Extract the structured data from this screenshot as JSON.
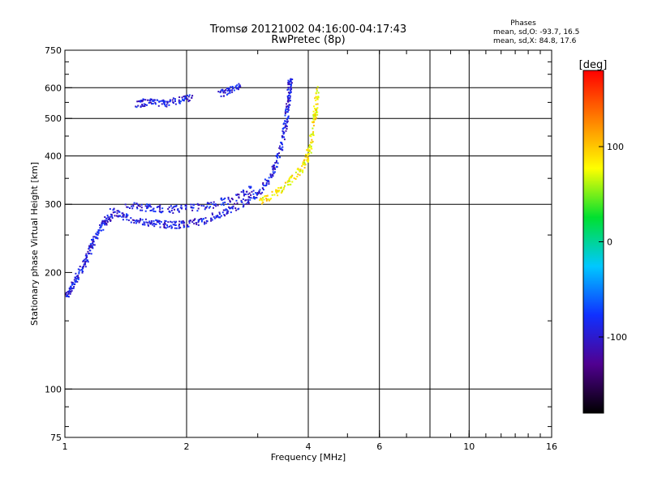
{
  "chart_data": {
    "type": "scatter",
    "title": "Tromsø 20121002 04:16:00-04:17:43",
    "subtitle": "RwPretec (8p)",
    "xlabel": "Frequency [MHz]",
    "ylabel": "Stationary phase Virtual Height [km]",
    "x_scale": "log",
    "y_scale": "log",
    "xlim": [
      1,
      16
    ],
    "ylim": [
      75,
      750
    ],
    "x_ticks": [
      1,
      2,
      4,
      6,
      10,
      16
    ],
    "y_ticks": [
      75,
      100,
      200,
      300,
      400,
      500,
      600,
      750
    ],
    "x_grid": [
      2,
      4,
      6,
      8,
      10
    ],
    "y_grid": [
      100,
      300,
      400,
      500,
      600
    ],
    "grid": true,
    "phases": {
      "heading": "Phases",
      "line_o": "mean, sd,O: -93.7, 16.5",
      "line_x": "mean, sd,X:  84.8, 17.6"
    },
    "colorbar": {
      "label": "[deg]",
      "range": [
        -180,
        180
      ],
      "ticks": [
        100,
        0,
        -100
      ],
      "colors": [
        "#000000",
        "#500090",
        "#1030ff",
        "#00c8ff",
        "#00e030",
        "#ffff00",
        "#ff8000",
        "#ff0000"
      ]
    },
    "series": [
      {
        "kind": "O-mode trace",
        "phase_mean": -93.7,
        "segments": [
          {
            "f": [
              1.0,
              1.04,
              1.08,
              1.12,
              1.16,
              1.2,
              1.25,
              1.3
            ],
            "h": [
              175,
              185,
              200,
              215,
              235,
              255,
              272,
              282
            ]
          },
          {
            "f": [
              1.3,
              1.4,
              1.55,
              1.7,
              1.85,
              2.0,
              2.2,
              2.45,
              2.7,
              2.95
            ],
            "h": [
              288,
              280,
              272,
              268,
              266,
              268,
              274,
              286,
              300,
              318
            ]
          },
          {
            "f": [
              1.4,
              1.6,
              1.8,
              2.0,
              2.3,
              2.6,
              2.9
            ],
            "h": [
              300,
              295,
              292,
              294,
              300,
              312,
              330
            ]
          },
          {
            "f": [
              2.95,
              3.15,
              3.3,
              3.42,
              3.5,
              3.55,
              3.58,
              3.6
            ],
            "h": [
              318,
              345,
              380,
              430,
              490,
              550,
              600,
              640
            ]
          },
          {
            "f": [
              1.5,
              1.6,
              1.75,
              1.9,
              2.05
            ],
            "h": [
              545,
              555,
              550,
              560,
              570
            ]
          },
          {
            "f": [
              2.4,
              2.55,
              2.7
            ],
            "h": [
              580,
              595,
              610
            ]
          }
        ]
      },
      {
        "kind": "X-mode trace",
        "phase_mean": 84.8,
        "segments": [
          {
            "f": [
              3.0,
              3.3,
              3.6,
              3.85,
              4.0,
              4.08,
              4.15,
              4.2
            ],
            "h": [
              305,
              320,
              345,
              375,
              410,
              460,
              520,
              600
            ]
          }
        ]
      }
    ]
  }
}
